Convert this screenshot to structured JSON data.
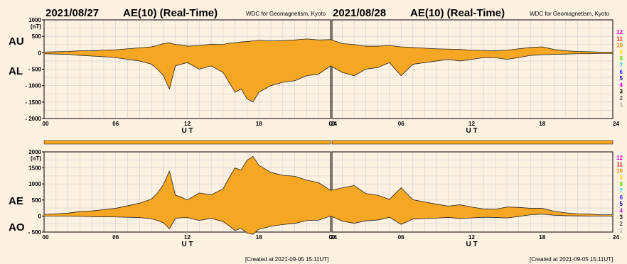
{
  "panels": [
    {
      "date": "2021/08/27",
      "title": "AE(10) (Real-Time)",
      "source": "WDC for Geomagnetism, Kyoto",
      "created": "[Created at 2021-09-05 15:11UT]"
    },
    {
      "date": "2021/08/28",
      "title": "AE(10) (Real-Time)",
      "source": "WDC for Geomagnetism, Kyoto",
      "created": "[Created at 2021-09-05 15:11UT]"
    }
  ],
  "labels": {
    "au": "AU",
    "al": "AL",
    "ae": "AE",
    "ao": "AO",
    "ut": "U T"
  },
  "station_counts": {
    "labels": [
      "12",
      "11",
      "10",
      "9",
      "8",
      "7",
      "6",
      "5",
      "4",
      "3",
      "2",
      "1"
    ],
    "colors": [
      "#ff00cc",
      "#ff2222",
      "#ff8800",
      "#ffdd00",
      "#66dd00",
      "#00cccc",
      "#2222ff",
      "#0000aa",
      "#cc00cc",
      "#000000",
      "#555555",
      "#aaaaaa"
    ]
  },
  "colors": {
    "fill": "#f5a623",
    "outline": "#222222",
    "background": "#fdf1e2",
    "coverage_bar": "#f5a623"
  },
  "chart_data": [
    {
      "type": "area",
      "title": "",
      "xlabel": "U T",
      "ylabel": "(nT)",
      "ylim": [
        -2000,
        1000
      ],
      "yticks": [
        1000,
        500,
        0,
        -500,
        -1000,
        -1500,
        -2000
      ],
      "xticks": [
        "00",
        "06",
        "12",
        "18",
        "24"
      ],
      "xlim": [
        0,
        48
      ],
      "series": [
        {
          "name": "AU",
          "x": [
            0,
            1,
            2,
            3,
            4,
            5,
            6,
            7,
            8,
            9,
            9.5,
            10,
            10.5,
            11,
            11.5,
            12,
            13,
            14,
            15,
            15.5,
            16,
            16.5,
            17,
            17.5,
            18,
            19,
            20,
            21,
            22,
            23,
            24,
            25,
            26,
            27,
            28,
            29,
            30,
            31,
            32,
            33,
            34,
            35,
            36,
            37,
            38,
            39,
            40,
            41,
            42,
            43,
            44,
            45,
            46,
            47,
            48
          ],
          "values": [
            20,
            30,
            40,
            60,
            60,
            80,
            90,
            120,
            150,
            180,
            220,
            280,
            300,
            250,
            240,
            200,
            220,
            260,
            250,
            290,
            300,
            330,
            340,
            360,
            380,
            360,
            370,
            390,
            420,
            390,
            400,
            280,
            250,
            200,
            200,
            220,
            180,
            160,
            140,
            120,
            110,
            100,
            80,
            70,
            60,
            80,
            120,
            160,
            180,
            100,
            60,
            40,
            30,
            20,
            20
          ]
        },
        {
          "name": "AL",
          "x": [
            0,
            1,
            2,
            3,
            4,
            5,
            6,
            7,
            8,
            9,
            9.5,
            10,
            10.5,
            11,
            11.5,
            12,
            13,
            14,
            15,
            15.5,
            16,
            16.5,
            17,
            17.5,
            18,
            19,
            20,
            21,
            22,
            23,
            24,
            25,
            26,
            27,
            28,
            29,
            30,
            31,
            32,
            33,
            34,
            35,
            36,
            37,
            38,
            39,
            40,
            41,
            42,
            43,
            44,
            45,
            46,
            47,
            48
          ],
          "values": [
            -30,
            -40,
            -50,
            -80,
            -100,
            -120,
            -150,
            -200,
            -250,
            -350,
            -500,
            -700,
            -1100,
            -400,
            -350,
            -300,
            -500,
            -400,
            -600,
            -900,
            -1200,
            -1100,
            -1400,
            -1500,
            -1200,
            -1000,
            -900,
            -850,
            -700,
            -650,
            -400,
            -600,
            -700,
            -500,
            -450,
            -300,
            -700,
            -350,
            -300,
            -250,
            -200,
            -250,
            -200,
            -150,
            -150,
            -200,
            -150,
            -80,
            -60,
            -50,
            -40,
            -30,
            -30,
            -20,
            -20
          ]
        }
      ]
    },
    {
      "type": "area",
      "title": "",
      "xlabel": "U T",
      "ylabel": "(nT)",
      "ylim": [
        -500,
        2000
      ],
      "yticks": [
        2000,
        1500,
        1000,
        500,
        0,
        -500
      ],
      "xticks": [
        "00",
        "06",
        "12",
        "18",
        "24"
      ],
      "xlim": [
        0,
        48
      ],
      "series": [
        {
          "name": "AE",
          "x": [
            0,
            1,
            2,
            3,
            4,
            5,
            6,
            7,
            8,
            9,
            9.5,
            10,
            10.5,
            11,
            11.5,
            12,
            13,
            14,
            15,
            15.5,
            16,
            16.5,
            17,
            17.5,
            18,
            19,
            20,
            21,
            22,
            23,
            24,
            25,
            26,
            27,
            28,
            29,
            30,
            31,
            32,
            33,
            34,
            35,
            36,
            37,
            38,
            39,
            40,
            41,
            42,
            43,
            44,
            45,
            46,
            47,
            48
          ],
          "values": [
            50,
            70,
            90,
            140,
            160,
            200,
            240,
            320,
            400,
            530,
            720,
            980,
            1400,
            650,
            590,
            500,
            720,
            660,
            850,
            1190,
            1500,
            1430,
            1740,
            1860,
            1580,
            1360,
            1270,
            1240,
            1120,
            1040,
            800,
            880,
            950,
            700,
            650,
            520,
            880,
            510,
            440,
            370,
            310,
            350,
            280,
            220,
            210,
            280,
            270,
            240,
            240,
            150,
            100,
            70,
            60,
            40,
            40
          ]
        },
        {
          "name": "AO",
          "x": [
            0,
            1,
            2,
            3,
            4,
            5,
            6,
            7,
            8,
            9,
            9.5,
            10,
            10.5,
            11,
            11.5,
            12,
            13,
            14,
            15,
            15.5,
            16,
            16.5,
            17,
            17.5,
            18,
            19,
            20,
            21,
            22,
            23,
            24,
            25,
            26,
            27,
            28,
            29,
            30,
            31,
            32,
            33,
            34,
            35,
            36,
            37,
            38,
            39,
            40,
            41,
            42,
            43,
            44,
            45,
            46,
            47,
            48
          ],
          "values": [
            -5,
            -5,
            -5,
            -10,
            -20,
            -20,
            -30,
            -40,
            -50,
            -85,
            -140,
            -210,
            -400,
            -75,
            -55,
            -50,
            -140,
            -70,
            -175,
            -305,
            -450,
            -385,
            -530,
            -570,
            -410,
            -320,
            -265,
            -230,
            -140,
            -130,
            0,
            -160,
            -225,
            -150,
            -125,
            -40,
            -260,
            -95,
            -80,
            -65,
            -45,
            -75,
            -60,
            -40,
            -45,
            -60,
            -15,
            40,
            60,
            25,
            10,
            5,
            0,
            0,
            0
          ]
        }
      ]
    }
  ]
}
